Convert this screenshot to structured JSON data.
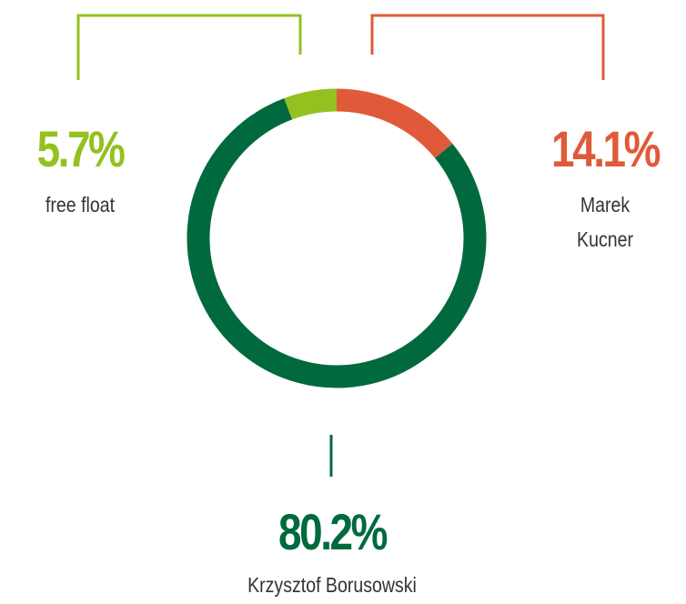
{
  "chart_data": {
    "type": "donut",
    "categories": [
      "Marek Kucner",
      "Krzysztof Borusowski",
      "free float"
    ],
    "values": [
      14.1,
      80.2,
      5.7
    ],
    "value_labels": [
      "14.1%",
      "80.2%",
      "5.7%"
    ],
    "colors": [
      "#e05a3a",
      "#006a3e",
      "#94c11f"
    ]
  }
}
